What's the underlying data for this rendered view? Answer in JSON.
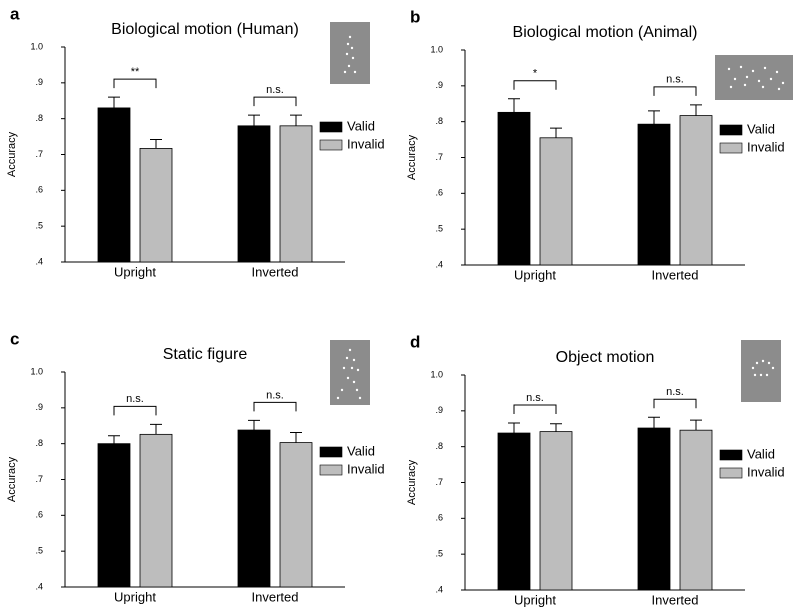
{
  "chart_data": [
    {
      "type": "bar",
      "panel_label": "a",
      "title": "Biological motion (Human)",
      "ylabel": "Accuracy",
      "categories": [
        "Upright",
        "Inverted"
      ],
      "series": [
        {
          "name": "Valid",
          "color": "#000000",
          "values": [
            0.83,
            0.78
          ],
          "errors": [
            0.03,
            0.03
          ]
        },
        {
          "name": "Invalid",
          "color": "#bdbdbd",
          "values": [
            0.717,
            0.78
          ],
          "errors": [
            0.025,
            0.03
          ]
        }
      ],
      "annotations": [
        "**",
        "n.s."
      ],
      "ylim": [
        0.4,
        1.0
      ],
      "yticks": [
        {
          "value": 0.4,
          "label": ".4"
        },
        {
          "value": 0.5,
          "label": ".5"
        },
        {
          "value": 0.6,
          "label": ".6"
        },
        {
          "value": 0.7,
          "label": ".7"
        },
        {
          "value": 0.8,
          "label": ".8"
        },
        {
          "value": 0.9,
          "label": ".9"
        },
        {
          "value": 1.0,
          "label": "1.0"
        }
      ]
    },
    {
      "type": "bar",
      "panel_label": "b",
      "title": "Biological motion (Animal)",
      "ylabel": "Accuracy",
      "categories": [
        "Upright",
        "Inverted"
      ],
      "series": [
        {
          "name": "Valid",
          "color": "#000000",
          "values": [
            0.826,
            0.793
          ],
          "errors": [
            0.038,
            0.037
          ]
        },
        {
          "name": "Invalid",
          "color": "#bdbdbd",
          "values": [
            0.755,
            0.817
          ],
          "errors": [
            0.027,
            0.03
          ]
        }
      ],
      "annotations": [
        "*",
        "n.s."
      ],
      "ylim": [
        0.4,
        1.0
      ],
      "yticks": [
        {
          "value": 0.4,
          "label": ".4"
        },
        {
          "value": 0.5,
          "label": ".5"
        },
        {
          "value": 0.6,
          "label": ".6"
        },
        {
          "value": 0.7,
          "label": ".7"
        },
        {
          "value": 0.8,
          "label": ".8"
        },
        {
          "value": 0.9,
          "label": ".9"
        },
        {
          "value": 1.0,
          "label": "1.0"
        }
      ]
    },
    {
      "type": "bar",
      "panel_label": "c",
      "title": "Static figure",
      "ylabel": "Accuracy",
      "categories": [
        "Upright",
        "Inverted"
      ],
      "series": [
        {
          "name": "Valid",
          "color": "#000000",
          "values": [
            0.8,
            0.838
          ],
          "errors": [
            0.022,
            0.027
          ]
        },
        {
          "name": "Invalid",
          "color": "#bdbdbd",
          "values": [
            0.826,
            0.803
          ],
          "errors": [
            0.028,
            0.028
          ]
        }
      ],
      "annotations": [
        "n.s.",
        "n.s."
      ],
      "ylim": [
        0.4,
        1.0
      ],
      "yticks": [
        {
          "value": 0.4,
          "label": ".4"
        },
        {
          "value": 0.5,
          "label": ".5"
        },
        {
          "value": 0.6,
          "label": ".6"
        },
        {
          "value": 0.7,
          "label": ".7"
        },
        {
          "value": 0.8,
          "label": ".8"
        },
        {
          "value": 0.9,
          "label": ".9"
        },
        {
          "value": 1.0,
          "label": "1.0"
        }
      ]
    },
    {
      "type": "bar",
      "panel_label": "d",
      "title": "Object motion",
      "ylabel": "Accuracy",
      "categories": [
        "Upright",
        "Inverted"
      ],
      "series": [
        {
          "name": "Valid",
          "color": "#000000",
          "values": [
            0.838,
            0.852
          ],
          "errors": [
            0.028,
            0.03
          ]
        },
        {
          "name": "Invalid",
          "color": "#bdbdbd",
          "values": [
            0.842,
            0.846
          ],
          "errors": [
            0.022,
            0.028
          ]
        }
      ],
      "annotations": [
        "n.s.",
        "n.s."
      ],
      "ylim": [
        0.4,
        1.0
      ],
      "yticks": [
        {
          "value": 0.4,
          "label": ".4"
        },
        {
          "value": 0.5,
          "label": ".5"
        },
        {
          "value": 0.6,
          "label": ".6"
        },
        {
          "value": 0.7,
          "label": ".7"
        },
        {
          "value": 0.8,
          "label": ".8"
        },
        {
          "value": 0.9,
          "label": ".9"
        },
        {
          "value": 1.0,
          "label": "1.0"
        }
      ]
    }
  ]
}
